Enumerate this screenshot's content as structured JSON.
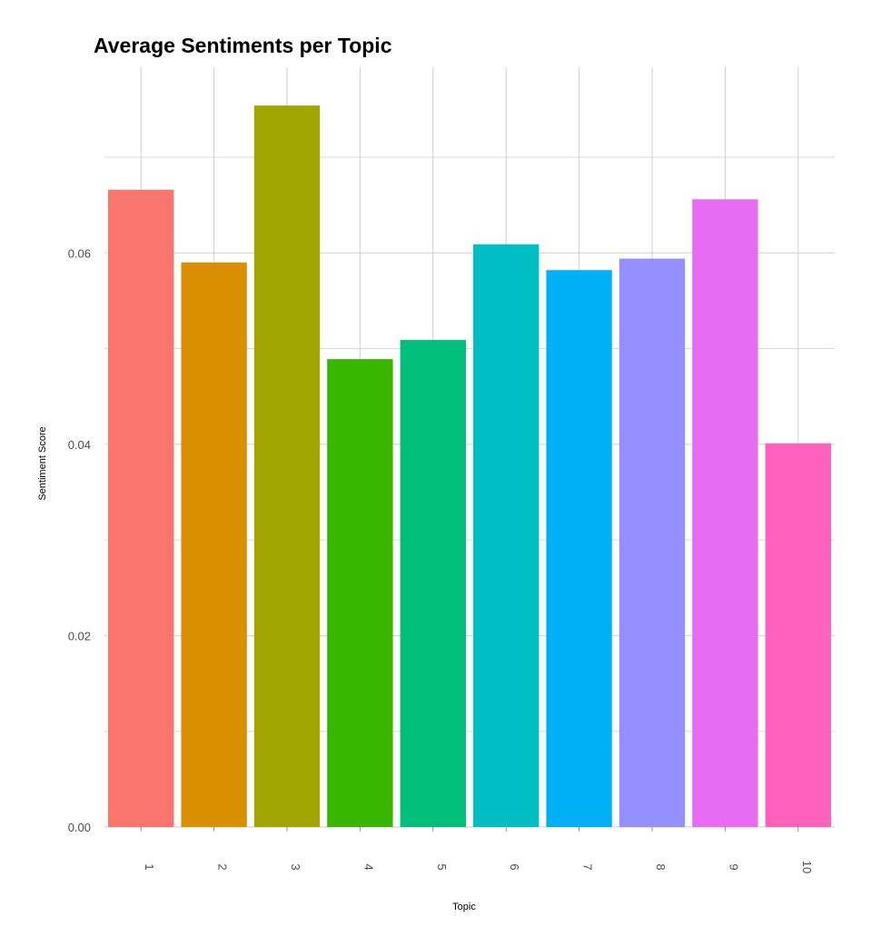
{
  "chart_data": {
    "type": "bar",
    "title": "Average Sentiments per Topic",
    "xlabel": "Topic",
    "ylabel": "Sentiment Score",
    "categories": [
      "1",
      "2",
      "3",
      "4",
      "5",
      "6",
      "7",
      "8",
      "9",
      "10"
    ],
    "values": [
      0.0666,
      0.059,
      0.0754,
      0.0489,
      0.0509,
      0.0609,
      0.0582,
      0.0594,
      0.0656,
      0.0401
    ],
    "colors": [
      "#F8766D",
      "#D89000",
      "#A3A500",
      "#39B600",
      "#00BF7D",
      "#00BFC4",
      "#00B0F6",
      "#9590FF",
      "#E76BF3",
      "#FF62BC"
    ],
    "ylim": [
      0,
      0.0794
    ],
    "yticks": [
      0,
      0.02,
      0.04,
      0.06
    ],
    "ytick_labels": [
      "0.00",
      "0.02",
      "0.04",
      "0.06"
    ],
    "grid": true,
    "legend": "none"
  }
}
